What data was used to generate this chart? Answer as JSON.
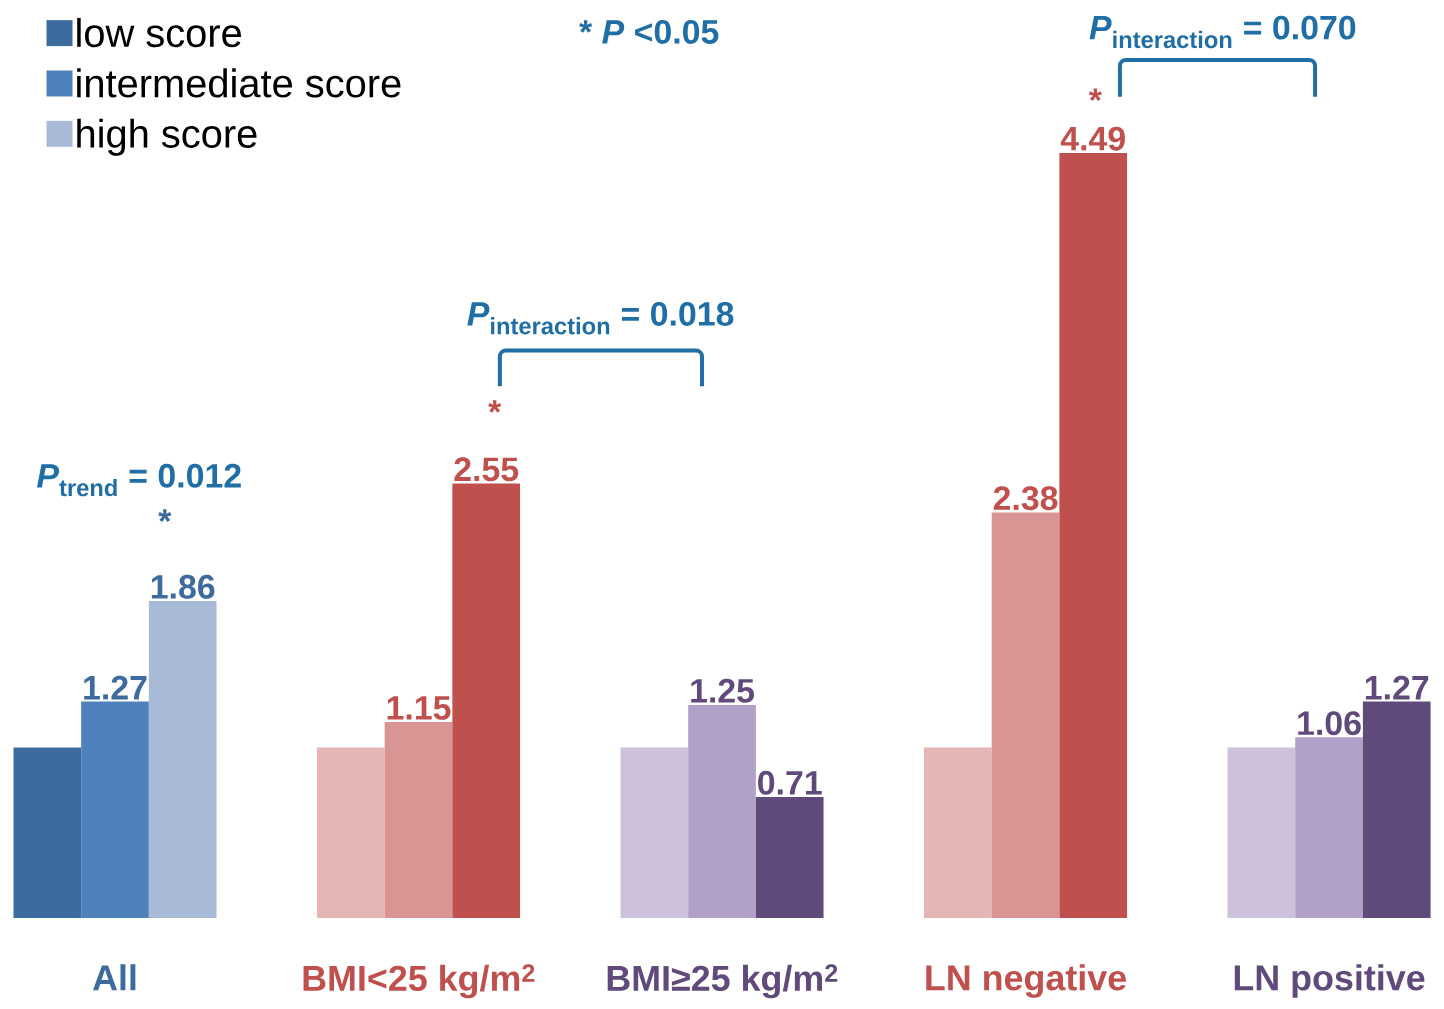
{
  "chart_data": {
    "type": "bar",
    "categories": [
      "All",
      "BMI<25 kg/m$^{2}$",
      "BMI≥25 kg/m$^{2}$",
      "LN negative",
      "LN positive"
    ],
    "series": [
      {
        "name": "low score",
        "color": "#3e6b9e",
        "colors": [
          "#3e6b9e",
          "#e5b6b5",
          "#ccc0da",
          "#e5b6b5",
          "#ccc0da"
        ],
        "values": [
          1,
          1,
          1,
          1,
          1
        ],
        "value_labels": [
          null,
          null,
          null,
          null,
          null
        ]
      },
      {
        "name": "intermediate score",
        "color": "#4f81bd",
        "colors": [
          "#4f81bd",
          "#d99594",
          "#b1a0c7",
          "#d99594",
          "#b1a0c7"
        ],
        "values": [
          1.27,
          1.15,
          1.25,
          2.38,
          1.06
        ],
        "value_labels": [
          "1.27",
          "1.15",
          "1.25",
          "2.38",
          "1.06"
        ]
      },
      {
        "name": "high score",
        "color": "#a9bad8",
        "colors": [
          "#a9bad8",
          "#c0504d",
          "#604a7b",
          "#c0504d",
          "#604a7b"
        ],
        "values": [
          1.86,
          2.55,
          0.71,
          4.49,
          1.27
        ],
        "value_labels": [
          "1.86",
          "2.55",
          "0.71",
          "4.49",
          "1.27"
        ]
      }
    ],
    "legend": "top left",
    "annotations": [
      "* *P* <0.05",
      "\\textbf{\\textit{P}}_{\\textbf{trend}}\\textbf{ = 0.012}",
      "\\textbf{\\textit{P}}_{\\textbf{interaction}}\\textbf{ = 0.018}",
      "\\textbf{\\textit{P}}_{\\textbf{interaction}}\\textbf{ = 0.070}",
      "*",
      "*",
      "*"
    ]
  }
}
